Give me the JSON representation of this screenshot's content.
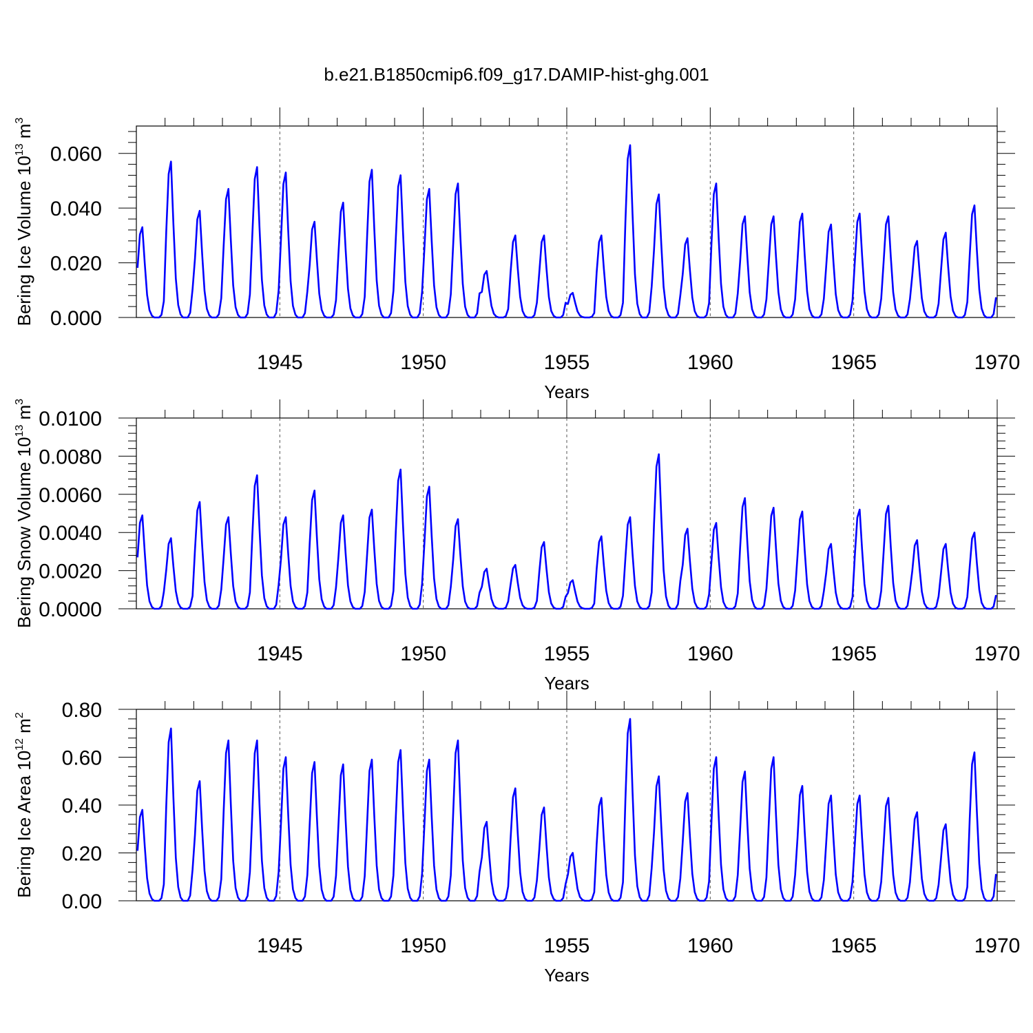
{
  "chart_data": {
    "title": "b.e21.B1850cmip6.f09_g17.DAMIP-hist-ghg.001",
    "type": "line",
    "x_range": [
      1940,
      1970
    ],
    "x_ticks": [
      1945,
      1950,
      1955,
      1960,
      1965,
      1970
    ],
    "x_tick_labels": [
      "1945",
      "1950",
      "1955",
      "1960",
      "1965",
      "1970"
    ],
    "xlabel": "Years",
    "line_color": "#0000ff",
    "panels": [
      {
        "ylabel_text": "Bering Ice Volume 10",
        "ylabel_exp": "13",
        "ylabel_unit": " m",
        "ylabel_unit_exp": "3",
        "ylim": [
          0,
          0.07
        ],
        "y_ticks": [
          0.0,
          0.02,
          0.04,
          0.06
        ],
        "y_tick_labels": [
          "0.000",
          "0.020",
          "0.040",
          "0.060"
        ],
        "peak_months": [
          0.2,
          0.1,
          0.2,
          0.2,
          0.2,
          0.2,
          0.2,
          0.25,
          0.2,
          0.2,
          0.2,
          0.2,
          0.2,
          0.2,
          0.2,
          0.2,
          0.2,
          0.2,
          0.2,
          0.2,
          0.2,
          0.2,
          0.2,
          0.2,
          0.2,
          0.2,
          0.2,
          0.2,
          0.2,
          0.2
        ],
        "peaks": [
          0.033,
          0.057,
          0.039,
          0.047,
          0.055,
          0.053,
          0.035,
          0.042,
          0.054,
          0.052,
          0.047,
          0.049,
          0.017,
          0.03,
          0.03,
          0.009,
          0.03,
          0.063,
          0.045,
          0.029,
          0.049,
          0.037,
          0.037,
          0.038,
          0.034,
          0.038,
          0.037,
          0.028,
          0.031,
          0.041
        ]
      },
      {
        "ylabel_text": "Bering Snow Volume 10",
        "ylabel_exp": "13",
        "ylabel_unit": " m",
        "ylabel_unit_exp": "3",
        "ylim": [
          0,
          0.01
        ],
        "y_ticks": [
          0.0,
          0.002,
          0.004,
          0.006,
          0.008,
          0.01
        ],
        "y_tick_labels": [
          "0.0000",
          "0.0020",
          "0.0040",
          "0.0060",
          "0.0080",
          "0.0100"
        ],
        "peak_months": [
          0.15,
          0.2,
          0.2,
          0.2,
          0.2,
          0.2,
          0.2,
          0.2,
          0.2,
          0.25,
          0.2,
          0.2,
          0.2,
          0.2,
          0.2,
          0.2,
          0.2,
          0.2,
          0.25,
          0.2,
          0.2,
          0.2,
          0.2,
          0.2,
          0.2,
          0.2,
          0.25,
          0.2,
          0.2,
          0.2
        ],
        "peaks": [
          0.0049,
          0.0037,
          0.0056,
          0.0048,
          0.007,
          0.0048,
          0.0062,
          0.0049,
          0.0052,
          0.0073,
          0.0064,
          0.0047,
          0.0021,
          0.0023,
          0.0035,
          0.0015,
          0.0038,
          0.0048,
          0.0081,
          0.0042,
          0.0045,
          0.0058,
          0.0053,
          0.0051,
          0.0034,
          0.0052,
          0.0054,
          0.0036,
          0.0034,
          0.004
        ]
      },
      {
        "ylabel_text": "Bering Ice Area 10",
        "ylabel_exp": "12",
        "ylabel_unit": " m",
        "ylabel_unit_exp": "2",
        "ylim": [
          0,
          0.8
        ],
        "y_ticks": [
          0.0,
          0.2,
          0.4,
          0.6,
          0.8
        ],
        "y_tick_labels": [
          "0.00",
          "0.20",
          "0.40",
          "0.60",
          "0.80"
        ],
        "peak_months": [
          0.1,
          0.2,
          0.2,
          0.2,
          0.2,
          0.25,
          0.2,
          0.2,
          0.25,
          0.2,
          0.25,
          0.2,
          0.2,
          0.2,
          0.2,
          0.2,
          0.2,
          0.2,
          0.2,
          0.2,
          0.2,
          0.2,
          0.2,
          0.2,
          0.2,
          0.2,
          0.2,
          0.2,
          0.25,
          0.2
        ],
        "peaks": [
          0.38,
          0.72,
          0.5,
          0.67,
          0.67,
          0.6,
          0.58,
          0.57,
          0.59,
          0.63,
          0.59,
          0.67,
          0.33,
          0.47,
          0.39,
          0.2,
          0.43,
          0.76,
          0.52,
          0.45,
          0.6,
          0.54,
          0.6,
          0.48,
          0.44,
          0.44,
          0.43,
          0.37,
          0.32,
          0.62
        ]
      }
    ]
  }
}
